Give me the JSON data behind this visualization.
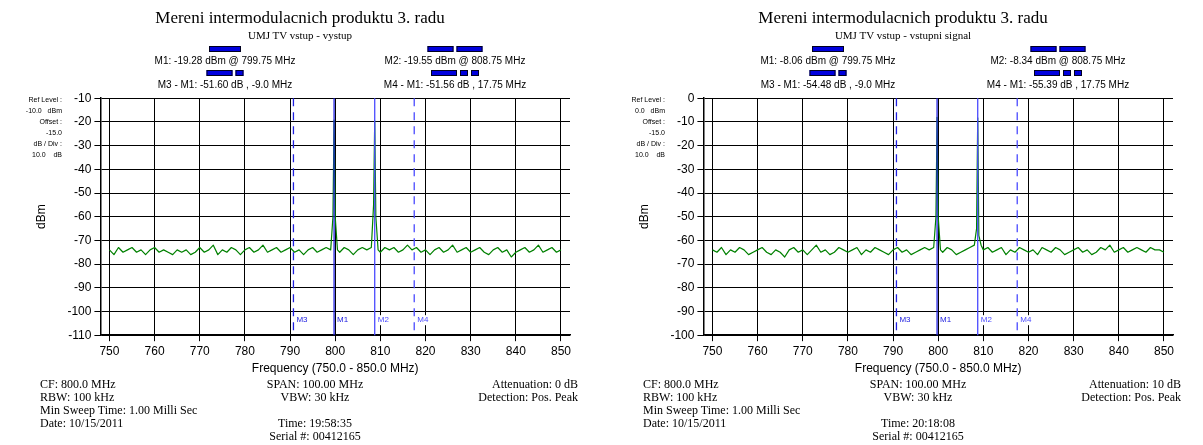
{
  "chart_data": [
    {
      "type": "line",
      "title": "Mereni intermodulacnich produktu 3. radu",
      "subtitle": "UMJ TV vstup - vystup",
      "xlabel": "Frequency (750.0 - 850.0 MHz)",
      "ylabel": "dBm",
      "x": [
        750,
        751,
        752,
        753,
        754,
        755,
        756,
        757,
        758,
        759,
        760,
        761,
        762,
        763,
        764,
        765,
        766,
        767,
        768,
        769,
        770,
        771,
        772,
        773,
        774,
        775,
        776,
        777,
        778,
        779,
        780,
        781,
        782,
        783,
        784,
        785,
        786,
        787,
        788,
        789,
        790,
        791,
        792,
        793,
        794,
        795,
        796,
        797,
        798,
        799,
        799.5,
        799.75,
        800,
        800.5,
        801,
        802,
        803,
        804,
        805,
        806,
        807,
        808,
        808.5,
        808.75,
        809,
        809.5,
        810,
        811,
        812,
        813,
        814,
        815,
        816,
        817,
        818,
        819,
        820,
        821,
        822,
        823,
        824,
        825,
        826,
        827,
        828,
        829,
        830,
        831,
        832,
        833,
        834,
        835,
        836,
        837,
        838,
        839,
        840,
        841,
        842,
        843,
        844,
        845,
        846,
        847,
        848,
        849,
        850
      ],
      "series": [
        {
          "color": "#008000",
          "values": [
            -74,
            -76,
            -73,
            -75,
            -74,
            -73,
            -75,
            -74,
            -76,
            -74,
            -73,
            -75,
            -74,
            -75,
            -76,
            -74,
            -75,
            -74,
            -76,
            -75,
            -73,
            -75,
            -74,
            -72,
            -76,
            -74,
            -75,
            -73,
            -74,
            -76,
            -74,
            -73,
            -75,
            -74,
            -72,
            -75,
            -74,
            -73,
            -75,
            -74,
            -73,
            -75,
            -74,
            -76,
            -74,
            -73,
            -75,
            -74,
            -73,
            -74,
            -60,
            -19.28,
            -60,
            -74,
            -75,
            -73,
            -74,
            -76,
            -74,
            -73,
            -74,
            -73,
            -55,
            -19.55,
            -60,
            -74,
            -75,
            -73,
            -74,
            -73,
            -75,
            -74,
            -72,
            -74,
            -73,
            -75,
            -74,
            -76,
            -74,
            -73,
            -75,
            -74,
            -72,
            -75,
            -74,
            -73,
            -75,
            -74,
            -73,
            -75,
            -76,
            -74,
            -73,
            -75,
            -74,
            -77,
            -75,
            -74,
            -73,
            -75,
            -74,
            -72,
            -75,
            -74,
            -73,
            -75,
            -74
          ]
        }
      ],
      "xlim": [
        748,
        852
      ],
      "xticks": [
        750,
        760,
        770,
        780,
        790,
        800,
        810,
        820,
        830,
        840,
        850
      ],
      "ylim": [
        -110,
        -10
      ],
      "yticks": [
        -110,
        -100,
        -90,
        -80,
        -70,
        -60,
        -50,
        -40,
        -30,
        -20,
        -10
      ],
      "grid": true,
      "legend": false,
      "marker": "none",
      "line_style": "solid",
      "ref_lines": [
        {
          "axis": "x",
          "value": 799.75,
          "label": "M1",
          "color": "#2020e0",
          "line_style": "solid"
        },
        {
          "axis": "x",
          "value": 808.75,
          "label": "M2",
          "color": "#4a4aff",
          "line_style": "solid"
        },
        {
          "axis": "x",
          "value": 790.75,
          "label": "M3",
          "color": "#2020e0",
          "line_style": "dashed"
        },
        {
          "axis": "x",
          "value": 817.5,
          "label": "M4",
          "color": "#4a4aff",
          "line_style": "dashed"
        }
      ],
      "annotations": [
        "M1: -19.28 dBm @ 799.75 MHz",
        "M2: -19.55 dBm @ 808.75 MHz",
        "M3 - M1: -51.60 dB , -9.0 MHz",
        "M4 - M1: -51.56 dB , 17.75 MHz",
        "Ref Level :",
        "-10.0   dBm",
        "Offset :",
        "-15.0",
        "dB / Div :",
        "10.0    dB",
        "CF: 800.0 MHz",
        "SPAN: 100.00 MHz",
        "Attenuation: 0 dB",
        "RBW: 100 kHz",
        "VBW: 30 kHz",
        "Detection: Pos. Peak",
        "Min Sweep Time: 1.00 Milli Sec",
        "Date: 10/15/2011",
        "Time: 19:58:35",
        "Serial #: 00412165"
      ]
    },
    {
      "type": "line",
      "title": "Mereni intermodulacnich produktu 3. radu",
      "subtitle": "UMJ TV vstup - vstupni signal",
      "xlabel": "Frequency (750.0 - 850.0 MHz)",
      "ylabel": "dBm",
      "x": [
        750,
        751,
        752,
        753,
        754,
        755,
        756,
        757,
        758,
        759,
        760,
        761,
        762,
        763,
        764,
        765,
        766,
        767,
        768,
        769,
        770,
        771,
        772,
        773,
        774,
        775,
        776,
        777,
        778,
        779,
        780,
        781,
        782,
        783,
        784,
        785,
        786,
        787,
        788,
        789,
        790,
        791,
        792,
        793,
        794,
        795,
        796,
        797,
        798,
        799,
        799.5,
        799.75,
        800,
        800.5,
        801,
        802,
        803,
        804,
        805,
        806,
        807,
        808,
        808.5,
        808.75,
        809,
        809.5,
        810,
        811,
        812,
        813,
        814,
        815,
        816,
        817,
        818,
        819,
        820,
        821,
        822,
        823,
        824,
        825,
        826,
        827,
        828,
        829,
        830,
        831,
        832,
        833,
        834,
        835,
        836,
        837,
        838,
        839,
        840,
        841,
        842,
        843,
        844,
        845,
        846,
        847,
        848,
        849,
        850
      ],
      "series": [
        {
          "color": "#008000",
          "values": [
            -64,
            -65,
            -63,
            -66,
            -64,
            -65,
            -63,
            -64,
            -66,
            -65,
            -64,
            -63,
            -65,
            -66,
            -64,
            -65,
            -67,
            -64,
            -63,
            -65,
            -64,
            -66,
            -64,
            -62,
            -65,
            -64,
            -66,
            -65,
            -63,
            -64,
            -65,
            -64,
            -63,
            -66,
            -64,
            -65,
            -63,
            -64,
            -65,
            -66,
            -64,
            -63,
            -65,
            -64,
            -66,
            -65,
            -64,
            -63,
            -64,
            -63,
            -50,
            -8.06,
            -50,
            -64,
            -65,
            -63,
            -64,
            -66,
            -65,
            -64,
            -63,
            -62,
            -55,
            -8.34,
            -58,
            -62,
            -64,
            -63,
            -65,
            -64,
            -63,
            -66,
            -64,
            -65,
            -63,
            -64,
            -65,
            -64,
            -66,
            -63,
            -64,
            -65,
            -63,
            -64,
            -66,
            -65,
            -64,
            -63,
            -65,
            -64,
            -66,
            -65,
            -63,
            -64,
            -62,
            -65,
            -64,
            -63,
            -65,
            -64,
            -63,
            -64,
            -65,
            -63,
            -64,
            -64,
            -65
          ]
        }
      ],
      "xlim": [
        748,
        852
      ],
      "xticks": [
        750,
        760,
        770,
        780,
        790,
        800,
        810,
        820,
        830,
        840,
        850
      ],
      "ylim": [
        -100,
        0
      ],
      "yticks": [
        -100,
        -90,
        -80,
        -70,
        -60,
        -50,
        -40,
        -30,
        -20,
        -10,
        0
      ],
      "grid": true,
      "legend": false,
      "marker": "none",
      "line_style": "solid",
      "ref_lines": [
        {
          "axis": "x",
          "value": 799.75,
          "label": "M1",
          "color": "#2020e0",
          "line_style": "solid"
        },
        {
          "axis": "x",
          "value": 808.75,
          "label": "M2",
          "color": "#4a4aff",
          "line_style": "solid"
        },
        {
          "axis": "x",
          "value": 790.75,
          "label": "M3",
          "color": "#2020e0",
          "line_style": "dashed"
        },
        {
          "axis": "x",
          "value": 817.5,
          "label": "M4",
          "color": "#4a4aff",
          "line_style": "dashed"
        }
      ],
      "annotations": [
        "M1: -8.06 dBm @ 799.75 MHz",
        "M2: -8.34 dBm @ 808.75 MHz",
        "M3 - M1: -54.48 dB , -9.0 MHz",
        "M4 - M1: -55.39 dB , 17.75 MHz",
        "Ref Level :",
        "0.0   dBm",
        "Offset :",
        "-15.0",
        "dB / Div :",
        "10.0    dB",
        "CF: 800.0 MHz",
        "SPAN: 100.00 MHz",
        "Attenuation: 10 dB",
        "RBW: 100 kHz",
        "VBW: 30 kHz",
        "Detection: Pos. Peak",
        "Min Sweep Time: 1.00 Milli Sec",
        "Date: 10/15/2011",
        "Time: 20:18:08",
        "Serial #: 00412165"
      ]
    }
  ]
}
